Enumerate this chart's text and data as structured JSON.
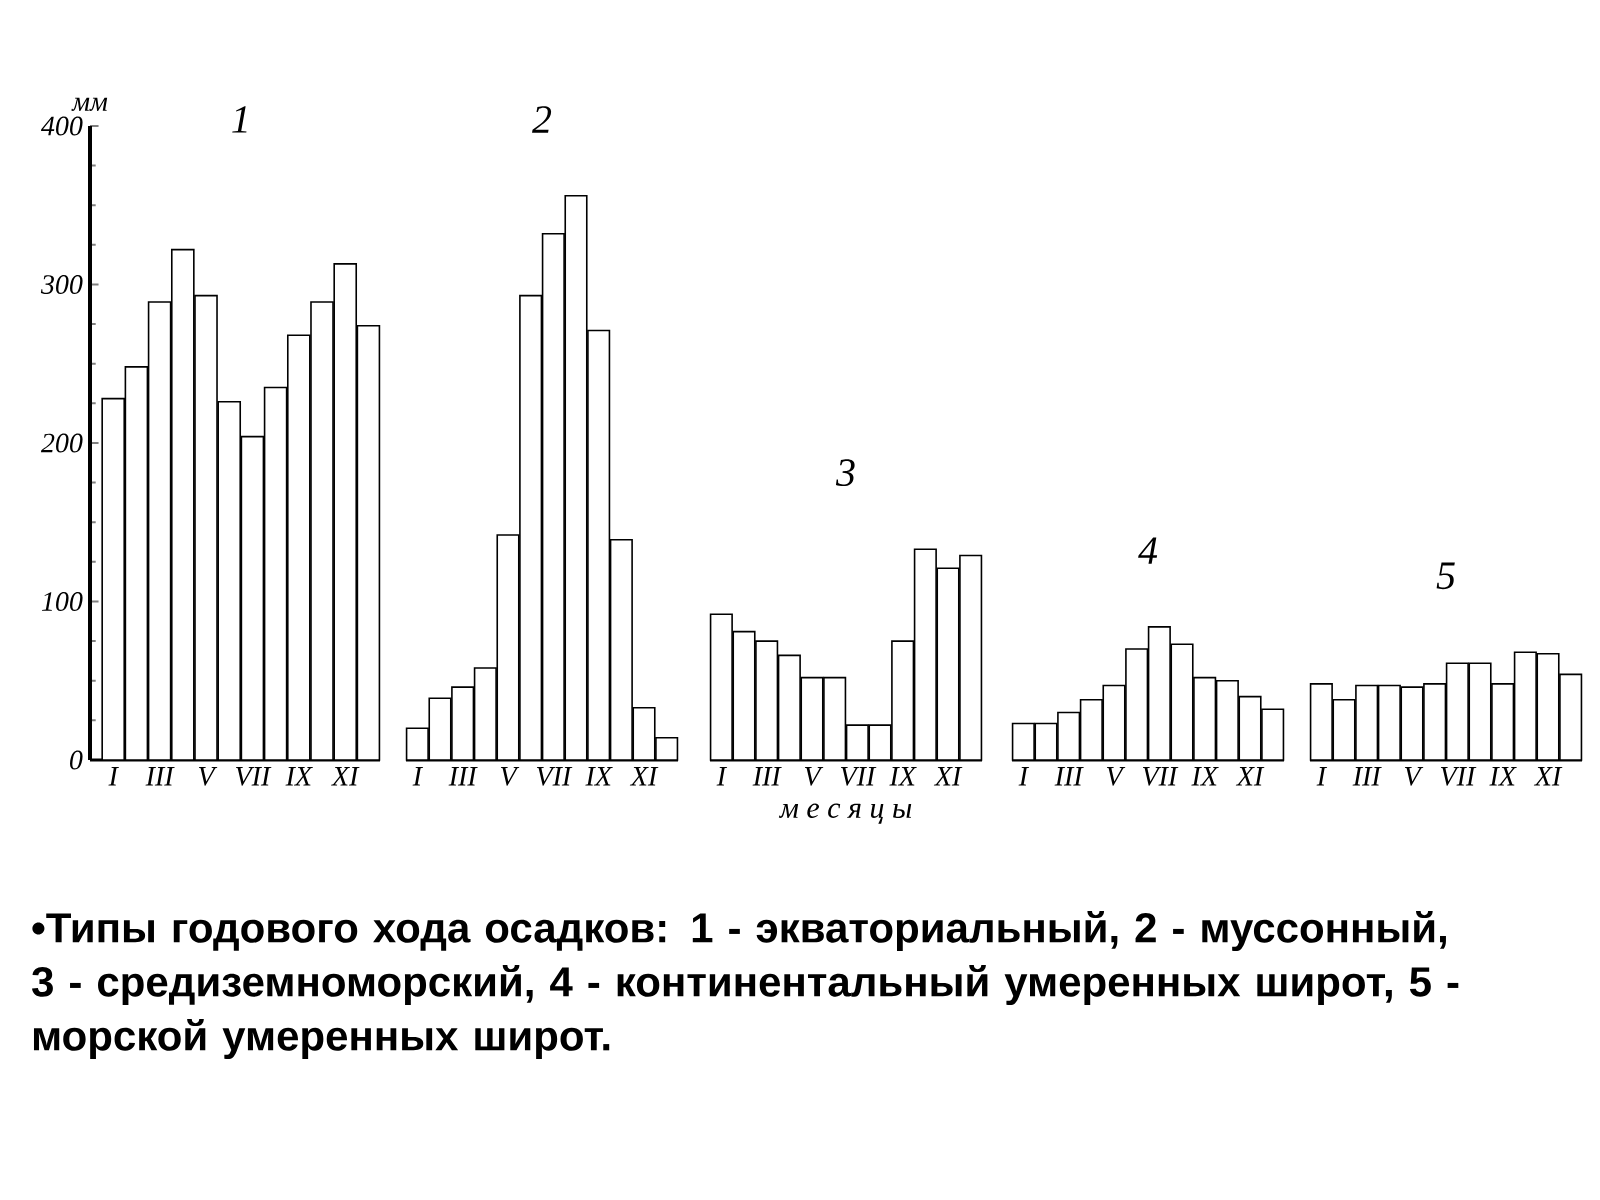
{
  "chart_data": [
    {
      "type": "bar",
      "title": "1",
      "ylabel": "мм",
      "categories": [
        "I",
        null,
        "III",
        null,
        "V",
        null,
        "VII",
        null,
        "IX",
        null,
        "XI",
        null
      ],
      "values": [
        228,
        248,
        289,
        322,
        293,
        226,
        204,
        235,
        268,
        289,
        313,
        274
      ],
      "color": "#ffffff",
      "ylim": [
        0,
        400
      ],
      "yticks": [
        0,
        100,
        200,
        300,
        400
      ],
      "annotations": [
        "•Типы годового хода осадков: 1 - экваториальный, 2 - муссонный, 3 - средиземноморский, 4 - континентальный умеренных широт, 5 - морской умеренных широт."
      ]
    },
    {
      "type": "bar",
      "title": "2",
      "categories": [
        "I",
        null,
        "III",
        null,
        "V",
        null,
        "VII",
        null,
        "IX",
        null,
        "XI",
        null
      ],
      "values": [
        20,
        39,
        46,
        58,
        142,
        293,
        332,
        356,
        271,
        139,
        33,
        14
      ],
      "color": "#ffffff",
      "ylim": [
        0,
        400
      ],
      "tick_labels": "x"
    },
    {
      "type": "bar",
      "title": "3",
      "xlabel": "м е с я ц ы",
      "categories": [
        "I",
        null,
        "III",
        null,
        "V",
        null,
        "VII",
        null,
        "IX",
        null,
        "XI",
        null
      ],
      "values": [
        92,
        81,
        75,
        66,
        52,
        52,
        22,
        22,
        75,
        133,
        121,
        129
      ],
      "color": "#ffffff",
      "ylim": [
        0,
        400
      ],
      "tick_labels": "x"
    },
    {
      "type": "bar",
      "title": "4",
      "categories": [
        "I",
        null,
        "III",
        null,
        "V",
        null,
        "VII",
        null,
        "IX",
        null,
        "XI",
        null
      ],
      "values": [
        23,
        23,
        30,
        38,
        47,
        70,
        84,
        73,
        52,
        50,
        40,
        32
      ],
      "color": "#ffffff",
      "ylim": [
        0,
        400
      ],
      "tick_labels": "x"
    },
    {
      "type": "bar",
      "title": "5",
      "categories": [
        "I",
        null,
        "III",
        null,
        "V",
        null,
        "VII",
        null,
        "IX",
        null,
        "XI",
        null
      ],
      "values": [
        48,
        38,
        47,
        47,
        46,
        48,
        61,
        61,
        48,
        68,
        67,
        54
      ],
      "color": "#ffffff",
      "ylim": [
        0,
        400
      ],
      "tick_labels": "x"
    }
  ]
}
